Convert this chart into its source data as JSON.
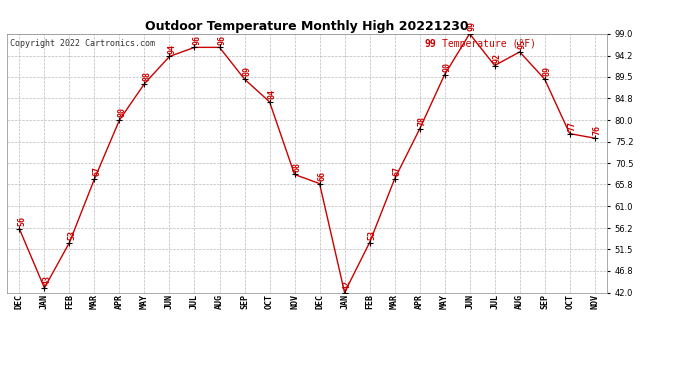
{
  "title": "Outdoor Temperature Monthly High 20221230",
  "copyright": "Copyright 2022 Cartronics.com",
  "legend_label": "Temperature (°F)",
  "legend_value": "99",
  "ylim": [
    42.0,
    99.0
  ],
  "yticks": [
    42.0,
    46.8,
    51.5,
    56.2,
    61.0,
    65.8,
    70.5,
    75.2,
    80.0,
    84.8,
    89.5,
    94.2,
    99.0
  ],
  "background_color": "#ffffff",
  "grid_color": "#aaaaaa",
  "line_color": "#cc0000",
  "point_color": "#000000",
  "label_color": "#cc0000",
  "title_fontsize": 9,
  "copyright_fontsize": 6,
  "legend_fontsize": 7,
  "tick_fontsize": 6,
  "annotation_fontsize": 6,
  "months": [
    "DEC",
    "JAN",
    "FEB",
    "MAR",
    "APR",
    "MAY",
    "JUN",
    "JUL",
    "AUG",
    "SEP",
    "OCT",
    "NOV",
    "DEC",
    "JAN",
    "FEB",
    "MAR",
    "APR",
    "MAY",
    "JUN",
    "JUL",
    "AUG",
    "SEP",
    "OCT",
    "NOV"
  ],
  "values": [
    56,
    43,
    53,
    67,
    80,
    88,
    94,
    96,
    96,
    89,
    84,
    68,
    66,
    42,
    53,
    67,
    78,
    90,
    99,
    92,
    95,
    89,
    77,
    76
  ]
}
